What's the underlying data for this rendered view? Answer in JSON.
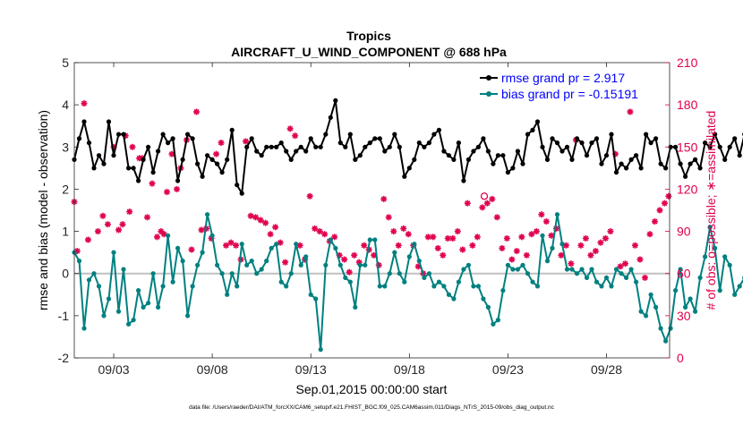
{
  "chart_data": {
    "type": "line",
    "title": "Tropics",
    "subtitle": "AIRCRAFT_U_WIND_COMPONENT @ 688 hPa",
    "xlabel": "Sep.01,2015 00:00:00 start",
    "ylabel_left": "rmse and bias (model - observation)",
    "ylabel_right": "# of obs: o=possible; ∗=assimilated",
    "footnote": "data file: /Users/raeder/DAI/ATM_forcXX/CAM6_setup/f.e21.FHIST_BGC.f09_025.CAM6assim.011/Diags_NTrS_2015-09/obs_diag_output.nc",
    "xlim": [
      1.0,
      31.2
    ],
    "ylim_left": [
      -2,
      5
    ],
    "ylim_right": [
      0,
      210
    ],
    "x_ticks": [
      3,
      8,
      13,
      18,
      23,
      28
    ],
    "x_tick_labels": [
      "09/03",
      "09/08",
      "09/13",
      "09/18",
      "09/23",
      "09/28"
    ],
    "y_ticks_left": [
      -2,
      -1,
      0,
      1,
      2,
      3,
      4,
      5
    ],
    "y_ticks_right": [
      0,
      30,
      60,
      90,
      120,
      150,
      180,
      210
    ],
    "legend_location": "top-right",
    "series": [
      {
        "name": "rmse grand pr = 2.917",
        "color": "#000000",
        "marker": "circle",
        "start": 1.0,
        "step": 0.25,
        "values": [
          2.7,
          3.2,
          3.6,
          3.1,
          2.5,
          2.8,
          2.6,
          3.6,
          2.8,
          3.3,
          3.3,
          2.5,
          2.5,
          2.2,
          2.7,
          3.0,
          2.4,
          2.9,
          3.3,
          3.1,
          3.2,
          2.2,
          2.7,
          3.3,
          3.2,
          2.6,
          2.3,
          2.8,
          2.7,
          2.6,
          2.4,
          2.7,
          3.4,
          2.1,
          1.9,
          3.0,
          3.2,
          2.9,
          2.8,
          3.0,
          3.0,
          3.0,
          3.1,
          2.9,
          2.7,
          2.9,
          3.0,
          2.9,
          3.2,
          3.0,
          3.0,
          3.3,
          3.7,
          4.1,
          3.1,
          3.0,
          3.3,
          2.7,
          2.8,
          3.0,
          3.1,
          3.2,
          3.2,
          2.9,
          3.0,
          3.3,
          3.0,
          2.3,
          2.5,
          2.7,
          3.1,
          3.0,
          3.1,
          3.3,
          3.4,
          2.9,
          2.8,
          2.7,
          3.1,
          2.2,
          2.7,
          2.9,
          3.0,
          3.2,
          2.9,
          2.6,
          2.8,
          2.8,
          2.4,
          2.5,
          2.9,
          2.6,
          3.3,
          3.4,
          3.6,
          3.0,
          2.7,
          3.2,
          3.1,
          2.9,
          3.0,
          2.7,
          3.2,
          3.1,
          2.8,
          3.1,
          3.2,
          2.6,
          2.8,
          3.3,
          2.4,
          2.6,
          2.5,
          2.7,
          2.8,
          2.5,
          3.3,
          3.1,
          3.2,
          2.6,
          2.5,
          3.0,
          3.0,
          2.6,
          2.3,
          2.6,
          2.7,
          2.5,
          3.1,
          3.0,
          3.3,
          3.0,
          2.7,
          3.0,
          3.2,
          2.8,
          3.3,
          3.1,
          2.9,
          3.1,
          3.0,
          2.8,
          3.1,
          3.4,
          3.0,
          2.9,
          3.4,
          2.9,
          2.7,
          2.8,
          2.5,
          2.9,
          3.4,
          2.8,
          2.9,
          3.7,
          3.5,
          2.9,
          3.0,
          2.5,
          2.5,
          2.8,
          3.2
        ],
        "rmse_grand": 2.917
      },
      {
        "name": "bias grand pr = -0.15191",
        "color": "#008080",
        "marker": "circle",
        "start": 1.0,
        "step": 0.25,
        "values": [
          0.5,
          0.3,
          -1.3,
          -0.15,
          0.0,
          -0.3,
          -1.0,
          -0.6,
          0.5,
          -0.9,
          0.1,
          -1.2,
          -1.1,
          -0.4,
          -0.8,
          -0.7,
          0.0,
          -0.8,
          -0.3,
          0.9,
          -0.2,
          0.6,
          0.3,
          -1.0,
          -0.3,
          0.2,
          0.5,
          1.4,
          0.9,
          0.2,
          0.0,
          -0.5,
          0.0,
          -0.3,
          0.7,
          0.2,
          0.3,
          0.0,
          0.1,
          0.3,
          0.6,
          0.7,
          -0.2,
          -0.3,
          0.0,
          0.7,
          0.2,
          0.4,
          -0.5,
          -0.6,
          -1.8,
          0.2,
          0.8,
          0.6,
          0.2,
          -0.1,
          -0.2,
          -0.8,
          0.2,
          0.2,
          0.8,
          0.8,
          -0.3,
          -0.3,
          0.0,
          0.5,
          0.0,
          -0.2,
          0.4,
          0.7,
          0.3,
          -0.1,
          0.0,
          -0.3,
          -0.2,
          -0.3,
          -0.5,
          -0.6,
          -0.2,
          0.1,
          0.2,
          -0.3,
          -0.3,
          -0.6,
          -0.8,
          -1.2,
          -1.1,
          -0.4,
          0.2,
          0.1,
          0.1,
          0.2,
          0.0,
          -0.2,
          -0.3,
          0.9,
          0.3,
          0.6,
          1.4,
          0.7,
          0.1,
          0.1,
          0.0,
          0.1,
          -0.1,
          0.1,
          -0.2,
          -0.3,
          -0.1,
          -0.3,
          0.1,
          0.0,
          -0.1,
          0.1,
          -0.2,
          -0.9,
          -1.0,
          -0.5,
          -0.8,
          -1.3,
          -1.6,
          -1.3,
          -0.4,
          0.1,
          -0.8,
          -0.6,
          -0.9,
          -0.1,
          0.4,
          1.1,
          0.6,
          -0.4,
          0.4,
          0.2,
          -0.5,
          -0.3,
          -0.1,
          0.0,
          0.4,
          -0.4,
          -0.1,
          0.2,
          -0.5,
          0.2,
          0.7,
          -0.4,
          0.2,
          -0.3,
          1.9,
          -0.4,
          -0.5,
          -0.5,
          -0.5,
          -0.5,
          -0.5,
          -0.3,
          -0.9,
          -0.9,
          -1.0,
          -0.5,
          -0.4,
          0.3,
          0.9
        ],
        "bias_grand": -0.15191
      }
    ],
    "obs_counts": {
      "color": "#e0004e",
      "marker": "asterisk",
      "axis": "right",
      "points": [
        [
          1.0,
          111
        ],
        [
          1.15,
          76
        ],
        [
          1.5,
          181
        ],
        [
          1.7,
          84
        ],
        [
          2.2,
          90
        ],
        [
          2.45,
          101
        ],
        [
          2.7,
          95
        ],
        [
          3.0,
          150
        ],
        [
          3.25,
          91
        ],
        [
          3.45,
          95
        ],
        [
          3.6,
          158
        ],
        [
          3.8,
          104
        ],
        [
          3.95,
          150
        ],
        [
          4.3,
          142
        ],
        [
          4.45,
          142
        ],
        [
          4.7,
          100
        ],
        [
          4.95,
          124
        ],
        [
          5.2,
          86
        ],
        [
          5.4,
          90
        ],
        [
          5.55,
          88
        ],
        [
          5.7,
          118
        ],
        [
          5.95,
          145
        ],
        [
          6.2,
          120
        ],
        [
          6.4,
          135
        ],
        [
          6.7,
          155
        ],
        [
          6.95,
          77
        ],
        [
          7.2,
          175
        ],
        [
          7.45,
          91
        ],
        [
          7.7,
          92
        ],
        [
          7.95,
          85
        ],
        [
          8.2,
          145
        ],
        [
          8.45,
          153
        ],
        [
          8.7,
          80
        ],
        [
          8.95,
          82
        ],
        [
          9.2,
          80
        ],
        [
          9.45,
          70
        ],
        [
          9.7,
          154
        ],
        [
          9.95,
          101
        ],
        [
          10.2,
          100
        ],
        [
          10.45,
          98
        ],
        [
          10.7,
          96
        ],
        [
          10.95,
          88
        ],
        [
          11.2,
          93
        ],
        [
          11.45,
          82
        ],
        [
          11.7,
          68
        ],
        [
          11.95,
          163
        ],
        [
          12.2,
          158
        ],
        [
          12.45,
          80
        ],
        [
          12.7,
          70
        ],
        [
          12.95,
          115
        ],
        [
          13.2,
          92
        ],
        [
          13.45,
          90
        ],
        [
          13.7,
          88
        ],
        [
          13.95,
          83
        ],
        [
          14.2,
          86
        ],
        [
          14.45,
          73
        ],
        [
          14.7,
          70
        ],
        [
          14.95,
          61
        ],
        [
          15.2,
          73
        ],
        [
          15.45,
          68
        ],
        [
          15.7,
          80
        ],
        [
          15.95,
          77
        ],
        [
          16.2,
          73
        ],
        [
          16.45,
          66
        ],
        [
          16.7,
          113
        ],
        [
          16.95,
          100
        ],
        [
          17.2,
          90
        ],
        [
          17.45,
          80
        ],
        [
          17.7,
          92
        ],
        [
          17.95,
          88
        ],
        [
          18.2,
          80
        ],
        [
          18.45,
          65
        ],
        [
          18.7,
          60
        ],
        [
          18.95,
          86
        ],
        [
          19.2,
          86
        ],
        [
          19.45,
          78
        ],
        [
          19.7,
          73
        ],
        [
          19.95,
          85
        ],
        [
          20.2,
          85
        ],
        [
          20.45,
          90
        ],
        [
          20.7,
          77
        ],
        [
          20.95,
          110
        ],
        [
          21.2,
          80
        ],
        [
          21.45,
          86
        ],
        [
          21.7,
          107
        ],
        [
          21.95,
          110
        ],
        [
          22.2,
          113
        ],
        [
          22.45,
          100
        ],
        [
          22.7,
          78
        ],
        [
          22.95,
          85
        ],
        [
          23.2,
          70
        ],
        [
          23.45,
          76
        ],
        [
          23.7,
          86
        ],
        [
          23.95,
          73
        ],
        [
          24.2,
          88
        ],
        [
          24.45,
          90
        ],
        [
          24.7,
          102
        ],
        [
          24.95,
          97
        ],
        [
          25.2,
          87
        ],
        [
          25.45,
          92
        ],
        [
          25.7,
          73
        ],
        [
          25.95,
          80
        ],
        [
          26.2,
          67
        ],
        [
          26.45,
          155
        ],
        [
          26.7,
          80
        ],
        [
          26.95,
          85
        ],
        [
          27.2,
          73
        ],
        [
          27.45,
          76
        ],
        [
          27.7,
          82
        ],
        [
          27.95,
          85
        ],
        [
          28.2,
          90
        ],
        [
          28.45,
          145
        ],
        [
          28.7,
          65
        ],
        [
          28.95,
          67
        ],
        [
          29.2,
          175
        ],
        [
          29.45,
          80
        ],
        [
          29.7,
          70
        ],
        [
          29.95,
          57
        ],
        [
          30.2,
          88
        ],
        [
          30.45,
          97
        ],
        [
          30.7,
          105
        ],
        [
          30.95,
          110
        ],
        [
          31.15,
          115
        ]
      ]
    },
    "possible_marker": {
      "x": 21.8,
      "y": 115,
      "color": "#e0004e",
      "marker": "open-circle"
    }
  }
}
